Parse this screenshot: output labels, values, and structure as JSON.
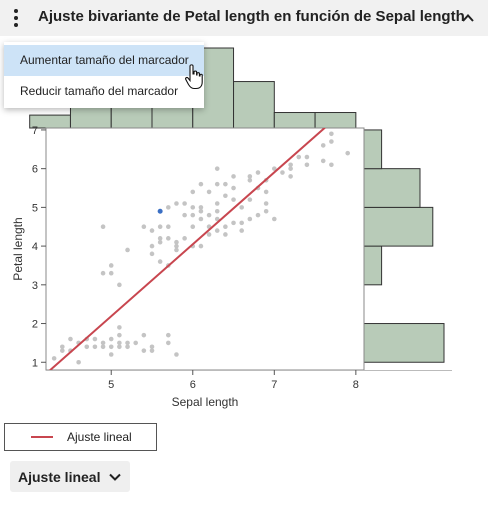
{
  "header": {
    "title": "Ajuste bivariante de Petal length en función de Sepal length",
    "menu_icon": "kebab-icon",
    "collapse_icon": "chevron-up-icon"
  },
  "context_menu": {
    "items": [
      {
        "label": "Aumentar tamaño del marcador",
        "highlighted": true
      },
      {
        "label": "Reducir tamaño del marcador",
        "highlighted": false
      }
    ]
  },
  "legend": {
    "label": "Ajuste lineal",
    "color": "#c8464f"
  },
  "fit_button": {
    "label": "Ajuste lineal",
    "icon": "chevron-down-icon"
  },
  "colors": {
    "point": "#c4c4c4",
    "selected_point": "#3a6fc4",
    "histogram": "#b8cbb8",
    "fit_line": "#c8464f"
  },
  "chart_data": {
    "type": "scatter",
    "xlabel": "Sepal length",
    "ylabel": "Petal length",
    "xlim": [
      4.2,
      8.1
    ],
    "ylim": [
      0.8,
      7.05
    ],
    "xticks": [
      5,
      6,
      7,
      8
    ],
    "yticks": [
      1,
      2,
      3,
      4,
      5,
      6,
      7
    ],
    "grid": false,
    "legend_position": "bottom-left",
    "points": [
      [
        4.3,
        1.1
      ],
      [
        4.4,
        1.3
      ],
      [
        4.5,
        1.3
      ],
      [
        4.6,
        1.5
      ],
      [
        4.7,
        1.4
      ],
      [
        4.8,
        1.6
      ],
      [
        4.8,
        1.4
      ],
      [
        4.9,
        1.5
      ],
      [
        4.9,
        1.4
      ],
      [
        5.0,
        1.6
      ],
      [
        5.0,
        1.4
      ],
      [
        5.0,
        1.2
      ],
      [
        5.1,
        1.5
      ],
      [
        5.1,
        1.9
      ],
      [
        5.1,
        1.4
      ],
      [
        5.1,
        1.7
      ],
      [
        5.2,
        1.5
      ],
      [
        5.2,
        1.4
      ],
      [
        5.3,
        1.5
      ],
      [
        5.4,
        1.7
      ],
      [
        5.4,
        1.3
      ],
      [
        5.5,
        1.4
      ],
      [
        5.5,
        1.3
      ],
      [
        5.7,
        1.5
      ],
      [
        5.7,
        1.7
      ],
      [
        5.8,
        1.2
      ],
      [
        4.6,
        1.0
      ],
      [
        4.4,
        1.4
      ],
      [
        4.5,
        1.6
      ],
      [
        4.7,
        1.6
      ],
      [
        4.9,
        3.3
      ],
      [
        5.0,
        3.5
      ],
      [
        5.2,
        3.9
      ],
      [
        5.5,
        4.0
      ],
      [
        5.5,
        3.8
      ],
      [
        5.6,
        3.6
      ],
      [
        5.6,
        4.2
      ],
      [
        5.6,
        4.5
      ],
      [
        5.7,
        4.2
      ],
      [
        5.8,
        4.1
      ],
      [
        5.8,
        4.0
      ],
      [
        5.9,
        4.2
      ],
      [
        6.0,
        4.5
      ],
      [
        6.0,
        4.0
      ],
      [
        6.1,
        4.7
      ],
      [
        6.1,
        4.0
      ],
      [
        6.2,
        4.3
      ],
      [
        6.3,
        4.4
      ],
      [
        6.3,
        4.7
      ],
      [
        6.4,
        4.5
      ],
      [
        6.5,
        4.6
      ],
      [
        6.6,
        4.4
      ],
      [
        6.7,
        4.7
      ],
      [
        6.8,
        4.8
      ],
      [
        6.9,
        4.9
      ],
      [
        7.0,
        4.7
      ],
      [
        5.4,
        4.5
      ],
      [
        5.7,
        4.5
      ],
      [
        5.6,
        4.1
      ],
      [
        6.2,
        4.8
      ],
      [
        5.8,
        5.1
      ],
      [
        6.0,
        5.0
      ],
      [
        6.1,
        5.6
      ],
      [
        6.2,
        5.4
      ],
      [
        6.3,
        5.6
      ],
      [
        6.3,
        5.1
      ],
      [
        6.4,
        5.3
      ],
      [
        6.4,
        5.6
      ],
      [
        6.5,
        5.2
      ],
      [
        6.5,
        5.5
      ],
      [
        6.7,
        5.7
      ],
      [
        6.7,
        5.2
      ],
      [
        6.8,
        5.5
      ],
      [
        6.9,
        5.1
      ],
      [
        6.9,
        5.7
      ],
      [
        7.1,
        5.9
      ],
      [
        7.2,
        6.0
      ],
      [
        7.2,
        5.8
      ],
      [
        7.3,
        6.3
      ],
      [
        7.4,
        6.1
      ],
      [
        7.6,
        6.6
      ],
      [
        7.7,
        6.7
      ],
      [
        7.7,
        6.1
      ],
      [
        7.9,
        6.4
      ],
      [
        6.7,
        5.8
      ],
      [
        6.3,
        6.0
      ],
      [
        6.1,
        4.9
      ],
      [
        6.4,
        4.3
      ],
      [
        5.7,
        5.0
      ],
      [
        5.9,
        4.8
      ],
      [
        4.9,
        4.5
      ],
      [
        5.0,
        3.3
      ],
      [
        5.1,
        3.0
      ],
      [
        5.5,
        4.4
      ],
      [
        6.6,
        4.6
      ],
      [
        6.5,
        5.8
      ],
      [
        5.8,
        3.9
      ],
      [
        6.9,
        5.4
      ],
      [
        7.7,
        6.9
      ],
      [
        7.6,
        6.2
      ],
      [
        7.0,
        6.0
      ],
      [
        7.4,
        6.3
      ],
      [
        6.8,
        5.9
      ],
      [
        7.2,
        6.1
      ],
      [
        6.0,
        5.4
      ],
      [
        5.7,
        3.5
      ],
      [
        6.2,
        4.5
      ],
      [
        6.1,
        5.0
      ],
      [
        6.3,
        4.9
      ],
      [
        5.9,
        5.1
      ],
      [
        6.0,
        4.8
      ],
      [
        5.6,
        4.9
      ],
      [
        6.6,
        5.0
      ]
    ],
    "selected_point": [
      5.6,
      4.9
    ],
    "fit_line": {
      "name": "Ajuste lineal",
      "slope": 1.858,
      "intercept": -7.101
    },
    "x_histogram": {
      "bins": [
        [
          4.0,
          4.5
        ],
        [
          4.5,
          5.0
        ],
        [
          5.0,
          5.5
        ],
        [
          5.5,
          6.0
        ],
        [
          6.0,
          6.5
        ],
        [
          6.5,
          7.0
        ],
        [
          7.0,
          7.5
        ],
        [
          7.5,
          8.0
        ]
      ],
      "counts": [
        5,
        27,
        27,
        30,
        31,
        18,
        6,
        6
      ]
    },
    "y_histogram": {
      "bins": [
        [
          1,
          2
        ],
        [
          2,
          3
        ],
        [
          3,
          4
        ],
        [
          4,
          5
        ],
        [
          5,
          6
        ],
        [
          6,
          7
        ]
      ],
      "counts": [
        50,
        0,
        11,
        43,
        35,
        11
      ]
    }
  }
}
